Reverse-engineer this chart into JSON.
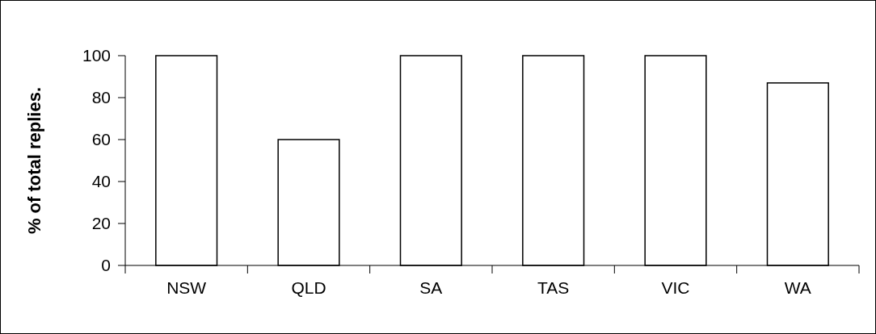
{
  "chart_data": {
    "type": "bar",
    "ylabel": "% of total replies.",
    "categories": [
      "NSW",
      "QLD",
      "SA",
      "TAS",
      "VIC",
      "WA"
    ],
    "values": [
      100,
      60,
      100,
      100,
      100,
      87
    ],
    "color": "#ffffff",
    "ylim": [
      0,
      100
    ],
    "yticks": [
      0,
      20,
      40,
      60,
      80,
      100
    ],
    "grid": false
  }
}
